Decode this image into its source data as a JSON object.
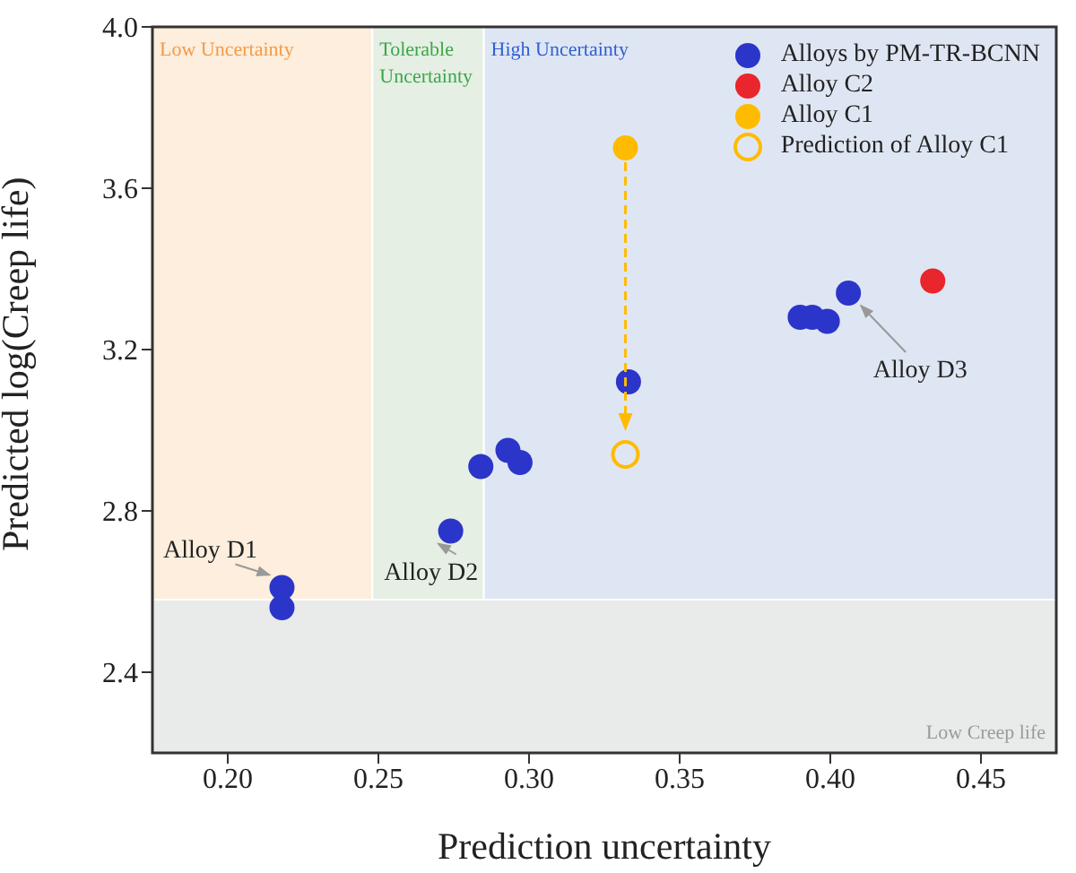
{
  "chart_data": {
    "type": "scatter",
    "xlabel": "Prediction uncertainty",
    "ylabel": "Predicted log(Creep life)",
    "xlim": [
      0.175,
      0.475
    ],
    "xticks": [
      {
        "value": 0.2,
        "label": "0.20"
      },
      {
        "value": 0.25,
        "label": "0.25"
      },
      {
        "value": 0.3,
        "label": "0.30"
      },
      {
        "value": 0.35,
        "label": "0.35"
      },
      {
        "value": 0.4,
        "label": "0.40"
      },
      {
        "value": 0.45,
        "label": "0.45"
      }
    ],
    "ylim": [
      2.2,
      4.0
    ],
    "yticks": [
      {
        "value": 2.4,
        "label": "2.4"
      },
      {
        "value": 2.8,
        "label": "2.8"
      },
      {
        "value": 3.2,
        "label": "3.2"
      },
      {
        "value": 3.6,
        "label": "3.6"
      },
      {
        "value": 4.0,
        "label": "4.0"
      }
    ],
    "legend": "top right",
    "marker": "circle",
    "series": [
      {
        "name": "Alloys by PM-TR-BCNN",
        "color": "#2b35c9",
        "x": [
          0.218,
          0.218,
          0.274,
          0.284,
          0.293,
          0.297,
          0.333,
          0.39,
          0.394,
          0.399,
          0.406
        ],
        "values": [
          2.61,
          2.56,
          2.75,
          2.91,
          2.95,
          2.92,
          3.12,
          3.28,
          3.28,
          3.27,
          3.34
        ]
      },
      {
        "name": "Alloy C2",
        "color": "#e8262b",
        "x": [
          0.434
        ],
        "values": [
          3.37
        ]
      },
      {
        "name": "Alloy C1",
        "color": "#ffbb00",
        "x": [
          0.332
        ],
        "values": [
          3.7
        ]
      },
      {
        "name": "Prediction of Alloy C1",
        "color": "#ffbb00",
        "x": [
          0.332
        ],
        "values": [
          2.94
        ]
      }
    ],
    "bands": [
      {
        "axis": "x",
        "from": 0.175,
        "to": 0.248,
        "label": "Low Uncertainty",
        "color": "#fdeedd"
      },
      {
        "axis": "x",
        "from": 0.248,
        "to": 0.285,
        "label": "Tolerable Uncertainty",
        "color": "#e5efe3"
      },
      {
        "axis": "x",
        "from": 0.285,
        "to": 0.475,
        "label": "High Uncertainty",
        "color": "#dfe6f3"
      },
      {
        "axis": "y",
        "from": 2.2,
        "to": 2.58,
        "label": "Low Creep life",
        "color": "#e9eaea"
      }
    ],
    "annotations": [
      {
        "text": "Alloy D1",
        "x": 0.218,
        "y": 2.61
      },
      {
        "text": "Alloy D2",
        "x": 0.274,
        "y": 2.75
      },
      {
        "text": "Alloy D3",
        "x": 0.406,
        "y": 3.34
      }
    ]
  }
}
